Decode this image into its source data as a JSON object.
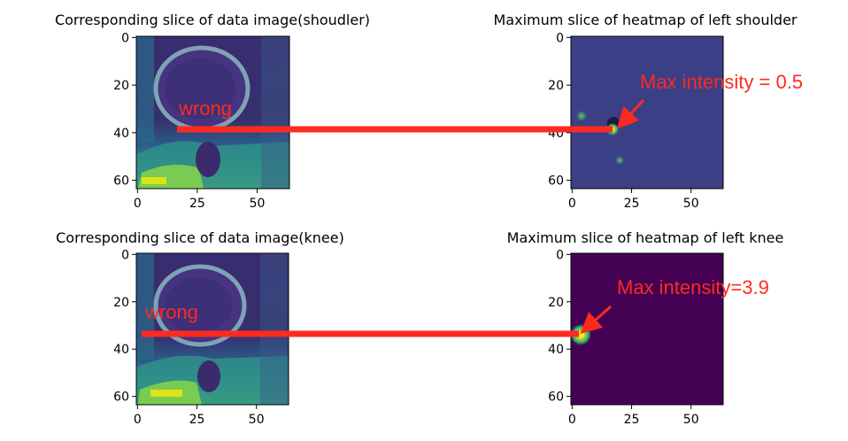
{
  "chart_data": [
    {
      "type": "heatmap",
      "title": "Corresponding slice of data image(shoudler)",
      "xticks": [
        0,
        25,
        50
      ],
      "yticks": [
        0,
        20,
        40,
        60
      ],
      "xlim": [
        0,
        63
      ],
      "ylim": [
        63,
        0
      ],
      "colormap": "viridis",
      "annotations": [
        {
          "text": "wrong",
          "x": 18,
          "y": 38
        }
      ]
    },
    {
      "type": "heatmap",
      "title": "Maximum slice of heatmap of left shoulder",
      "xticks": [
        0,
        25,
        50
      ],
      "yticks": [
        0,
        20,
        40,
        60
      ],
      "xlim": [
        0,
        63
      ],
      "ylim": [
        63,
        0
      ],
      "colormap": "viridis",
      "peak": {
        "x": 18,
        "y": 38,
        "value": 0.5
      },
      "annotations": [
        {
          "text": "Max intensity = 0.5",
          "x": 18,
          "y": 38
        }
      ]
    },
    {
      "type": "heatmap",
      "title": "Corresponding slice of data image(knee)",
      "xticks": [
        0,
        25,
        50
      ],
      "yticks": [
        0,
        20,
        40,
        60
      ],
      "xlim": [
        0,
        63
      ],
      "ylim": [
        63,
        0
      ],
      "colormap": "viridis",
      "annotations": [
        {
          "text": "wrong",
          "x": 2,
          "y": 34
        }
      ]
    },
    {
      "type": "heatmap",
      "title": "Maximum slice of heatmap of left knee",
      "xticks": [
        0,
        25,
        50
      ],
      "yticks": [
        0,
        20,
        40,
        60
      ],
      "xlim": [
        0,
        63
      ],
      "ylim": [
        63,
        0
      ],
      "colormap": "viridis",
      "peak": {
        "x": 3,
        "y": 34,
        "value": 3.9
      },
      "annotations": [
        {
          "text": "Max intensity=3.9",
          "x": 3,
          "y": 34
        }
      ]
    }
  ],
  "colors": {
    "annotation": "#ff2a1f",
    "viridis_dark": "#440154",
    "viridis_mid": "#3b528b",
    "viridis_teal": "#21918c",
    "viridis_green": "#5ec962",
    "viridis_yellow": "#fde725"
  }
}
